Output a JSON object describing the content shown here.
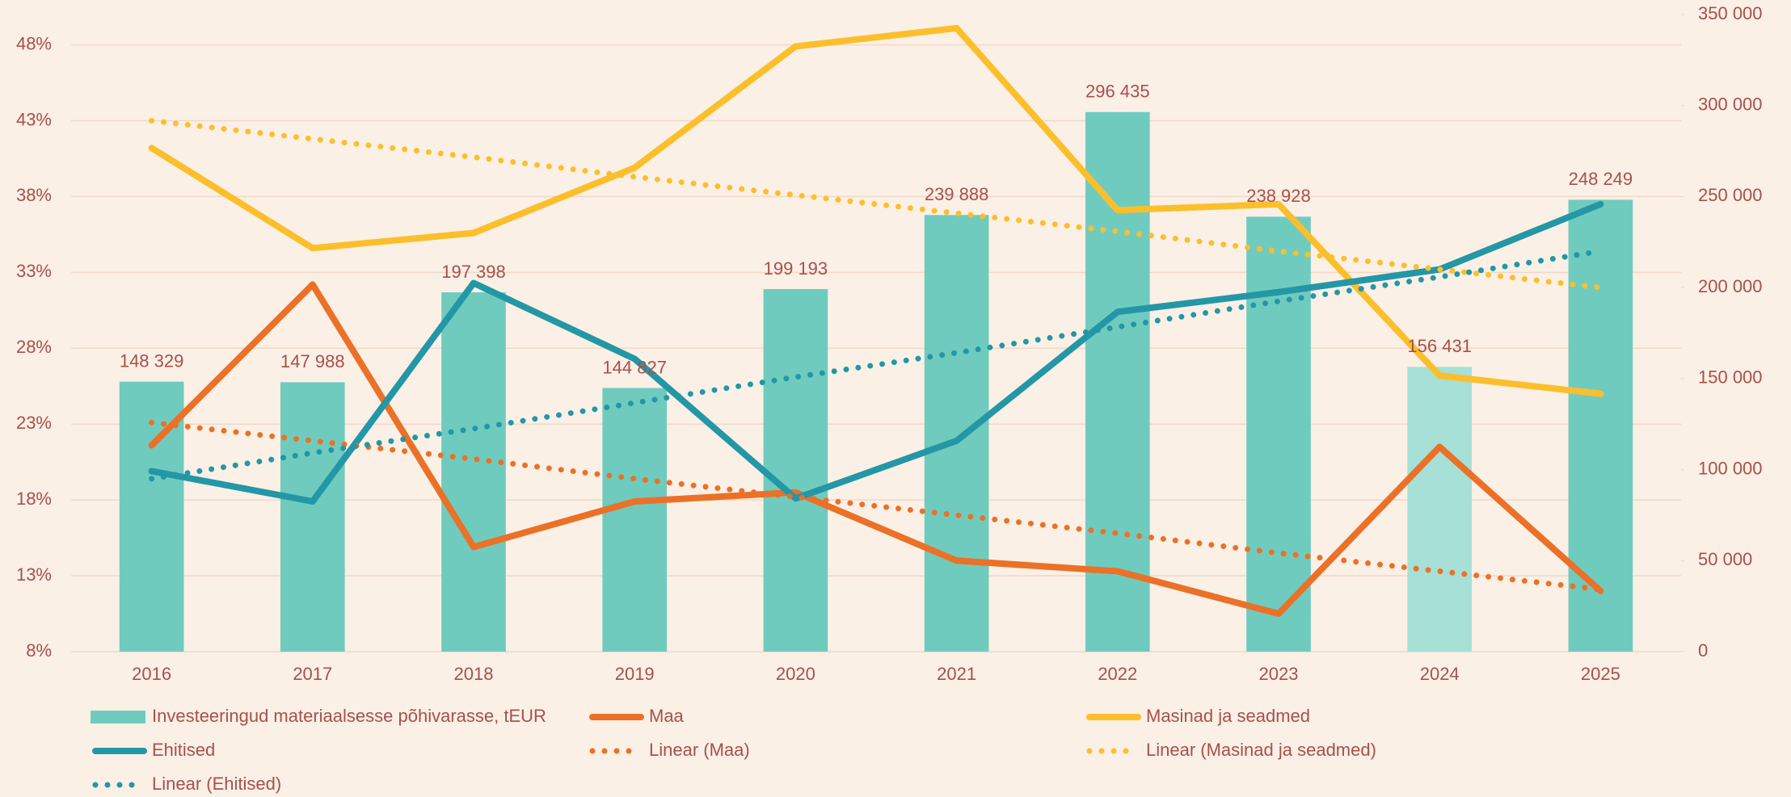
{
  "chart_data": {
    "type": "combo",
    "categories": [
      "2016",
      "2017",
      "2018",
      "2019",
      "2020",
      "2021",
      "2022",
      "2023",
      "2024",
      "2025"
    ],
    "ylim": [
      8,
      50
    ],
    "yticks": [
      {
        "value": 8,
        "label": "8%"
      },
      {
        "value": 13,
        "label": "13%"
      },
      {
        "value": 18,
        "label": "18%"
      },
      {
        "value": 23,
        "label": "23%"
      },
      {
        "value": 28,
        "label": "28%"
      },
      {
        "value": 33,
        "label": "33%"
      },
      {
        "value": 38,
        "label": "38%"
      },
      {
        "value": 43,
        "label": "43%"
      },
      {
        "value": 48,
        "label": "48%"
      }
    ],
    "y2lim": [
      0,
      350000
    ],
    "y2ticks": [
      0,
      {
        "value": 50000,
        "label": "50 000"
      },
      {
        "value": 100000,
        "label": "100 000"
      },
      {
        "value": 150000,
        "label": "150 000"
      },
      {
        "value": 200000,
        "label": "200 000"
      },
      {
        "value": 250000,
        "label": "250 000"
      },
      {
        "value": 300000,
        "label": "300 000"
      },
      {
        "value": 350000,
        "label": "350 000"
      }
    ],
    "grid": true,
    "legend": "bottom",
    "series": [
      {
        "name": "Investeeringud materiaalsesse põhivarasse, tEUR",
        "type": "bar",
        "axis": "y2",
        "color": "#70cbbf",
        "colors": [
          "#70cbbf",
          "#70cbbf",
          "#70cbbf",
          "#70cbbf",
          "#70cbbf",
          "#70cbbf",
          "#70cbbf",
          "#70cbbf",
          "#a6e0d7",
          "#70cbbf"
        ],
        "values": [
          148329,
          147988,
          197398,
          144827,
          199193,
          239888,
          296435,
          238928,
          156431,
          248249
        ],
        "value_labels": [
          "148 329",
          "147 988",
          "197 398",
          "144 827",
          "199 193",
          "239 888",
          "296 435",
          "238 928",
          "156 431",
          "248 249"
        ]
      },
      {
        "name": "Maa",
        "type": "line",
        "style": "solid",
        "color": "#ea7127",
        "values": [
          21.6,
          32.2,
          14.9,
          17.9,
          18.5,
          14.0,
          13.3,
          10.5,
          21.5,
          12.0
        ]
      },
      {
        "name": "Masinad ja seadmed",
        "type": "line",
        "style": "solid",
        "color": "#fbbf2c",
        "values": [
          41.2,
          34.6,
          35.6,
          39.9,
          47.9,
          49.1,
          37.1,
          37.5,
          26.2,
          25.0
        ]
      },
      {
        "name": "Ehitised",
        "type": "line",
        "style": "solid",
        "color": "#2397a6",
        "values": [
          19.9,
          17.9,
          32.3,
          27.3,
          18.1,
          21.9,
          30.4,
          31.7,
          33.2,
          37.5
        ]
      },
      {
        "name": "Linear (Maa)",
        "type": "line",
        "style": "dotted",
        "color": "#ea7127",
        "values": [
          23.1,
          21.9,
          20.7,
          19.4,
          18.2,
          17.0,
          15.8,
          14.5,
          13.3,
          12.1
        ]
      },
      {
        "name": "Linear (Masinad ja seadmed)",
        "type": "line",
        "style": "dotted",
        "color": "#fbbf2c",
        "values": [
          43.0,
          41.8,
          40.6,
          39.3,
          38.1,
          36.9,
          35.7,
          34.4,
          33.2,
          32.0
        ]
      },
      {
        "name": "Linear (Ehitised)",
        "type": "line",
        "style": "dotted",
        "color": "#2397a6",
        "values": [
          19.4,
          21.1,
          22.7,
          24.4,
          26.1,
          27.7,
          29.4,
          31.1,
          32.7,
          34.4
        ]
      }
    ]
  }
}
